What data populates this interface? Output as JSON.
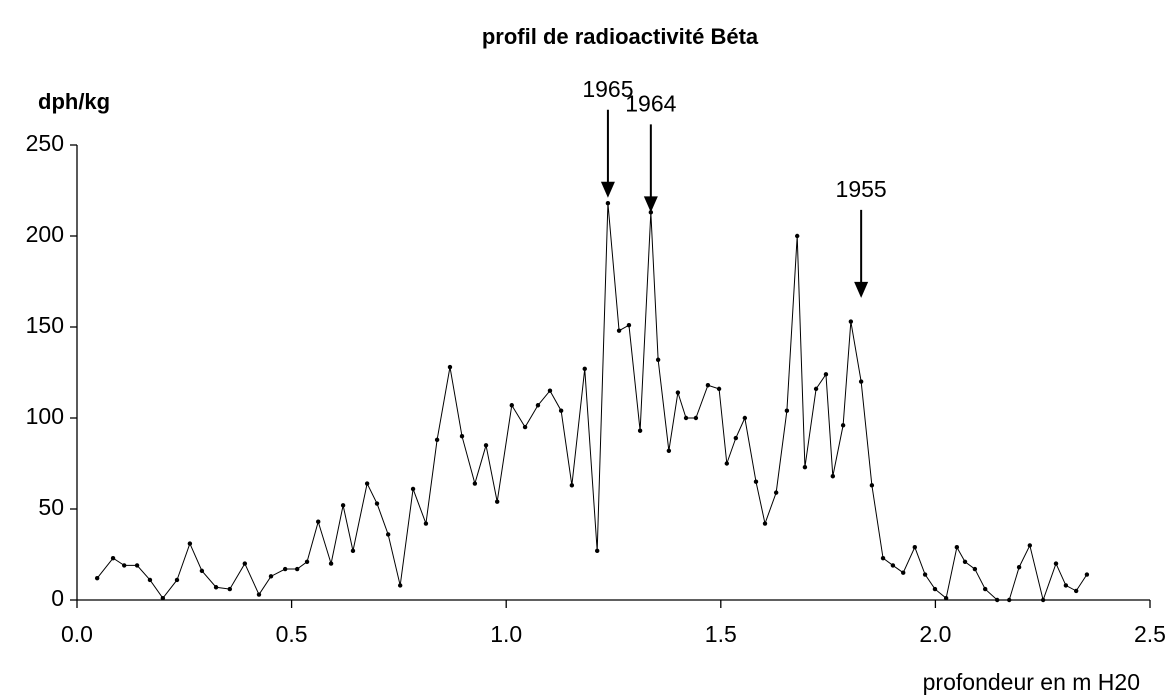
{
  "chart_data": {
    "type": "line",
    "title": "profil de radioactivité Béta",
    "y_label": "dph/kg",
    "x_label": "profondeur en m H20",
    "x": [
      0.047,
      0.084,
      0.11,
      0.14,
      0.17,
      0.2,
      0.233,
      0.263,
      0.291,
      0.324,
      0.356,
      0.391,
      0.424,
      0.452,
      0.485,
      0.513,
      0.536,
      0.562,
      0.592,
      0.62,
      0.643,
      0.676,
      0.699,
      0.725,
      0.753,
      0.783,
      0.813,
      0.839,
      0.869,
      0.897,
      0.927,
      0.953,
      0.979,
      1.013,
      1.044,
      1.074,
      1.102,
      1.128,
      1.153,
      1.183,
      1.212,
      1.237,
      1.263,
      1.286,
      1.312,
      1.337,
      1.354,
      1.379,
      1.4,
      1.419,
      1.442,
      1.47,
      1.496,
      1.514,
      1.535,
      1.556,
      1.582,
      1.603,
      1.629,
      1.654,
      1.678,
      1.696,
      1.722,
      1.745,
      1.761,
      1.785,
      1.803,
      1.827,
      1.852,
      1.878,
      1.901,
      1.925,
      1.952,
      1.976,
      1.999,
      2.025,
      2.05,
      2.069,
      2.092,
      2.116,
      2.144,
      2.172,
      2.195,
      2.22,
      2.251,
      2.281,
      2.304,
      2.328,
      2.353
    ],
    "series": [
      {
        "name": "Béta",
        "color": "#000000",
        "values": [
          12,
          23,
          19,
          19,
          11,
          1,
          11,
          31,
          16,
          7,
          6,
          20,
          3,
          13,
          17,
          17,
          21,
          43,
          20,
          52,
          27,
          64,
          53,
          36,
          8,
          61,
          42,
          88,
          128,
          90,
          64,
          85,
          54,
          107,
          95,
          107,
          115,
          104,
          63,
          127,
          27,
          218,
          148,
          151,
          93,
          213,
          132,
          82,
          114,
          100,
          100,
          118,
          116,
          75,
          89,
          100,
          65,
          42,
          59,
          104,
          200,
          73,
          116,
          124,
          68,
          96,
          153,
          120,
          63,
          23,
          19,
          15,
          29,
          14,
          6,
          1,
          29,
          21,
          17,
          6,
          0,
          0,
          18,
          30,
          0,
          20,
          8,
          5,
          14
        ]
      }
    ],
    "xlim": [
      0,
      2.5
    ],
    "ylim": [
      0,
      250
    ],
    "xticks": [
      {
        "value": 0,
        "label": "0.0"
      },
      0.5,
      {
        "value": 1,
        "label": "1.0"
      },
      1.5,
      {
        "value": 2,
        "label": "2.0"
      },
      2.5
    ],
    "yticks": [
      0,
      50,
      100,
      150,
      200,
      250
    ],
    "annotations": [
      {
        "text": "1965",
        "x": 1.237,
        "y": 221
      },
      {
        "text": "1964",
        "x": 1.337,
        "y": 213
      },
      {
        "text": "1955",
        "x": 1.827,
        "y": 166
      }
    ]
  }
}
